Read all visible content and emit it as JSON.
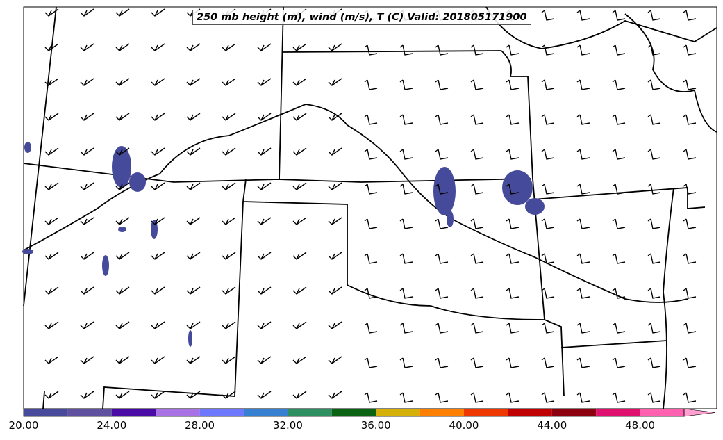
{
  "title": "250 mb height (m), wind (m/s), T (C) Valid: 201805171900",
  "colorbar": {
    "ticks": [
      "20.00",
      "24.00",
      "28.00",
      "32.00",
      "36.00",
      "40.00",
      "44.00",
      "48.00"
    ],
    "colors": [
      "#474a9a",
      "#5f51a0",
      "#4a0aa6",
      "#a872e4",
      "#6e78ff",
      "#3580d0",
      "#2e9060",
      "#0a6414",
      "#d6b00a",
      "#ff8000",
      "#ee3800",
      "#c00000",
      "#8c0010",
      "#e0106e",
      "#ff60b0"
    ],
    "extend_color": "#ffa0d0"
  },
  "shading_color": "#464a9a"
}
